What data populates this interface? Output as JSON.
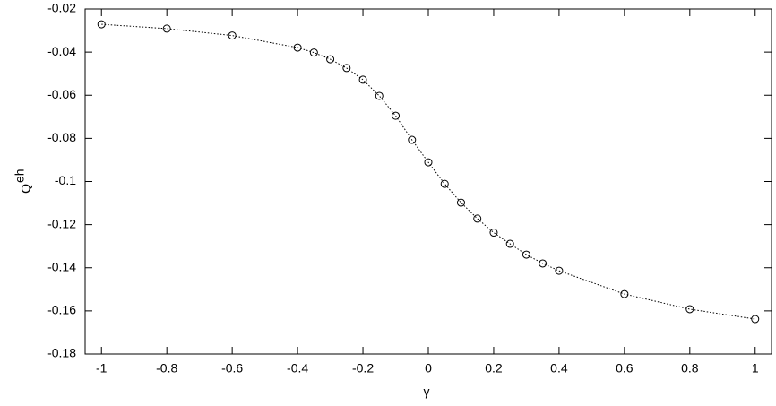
{
  "chart_data": {
    "type": "scatter",
    "xlabel": "γ",
    "ylabel": {
      "base": "Q",
      "superscript": "eh"
    },
    "x": [
      -1,
      -0.8,
      -0.6,
      -0.4,
      -0.35,
      -0.3,
      -0.25,
      -0.2,
      -0.15,
      -0.1,
      -0.05,
      0,
      0.05,
      0.1,
      0.15,
      0.2,
      0.25,
      0.3,
      0.35,
      0.4,
      0.6,
      0.8,
      1
    ],
    "values": [
      -0.0271,
      -0.0291,
      -0.0323,
      -0.0379,
      -0.0402,
      -0.0433,
      -0.0474,
      -0.0528,
      -0.0603,
      -0.0695,
      -0.0807,
      -0.0911,
      -0.1011,
      -0.1098,
      -0.1172,
      -0.1237,
      -0.1289,
      -0.1339,
      -0.138,
      -0.1414,
      -0.1522,
      -0.1592,
      -0.1638
    ],
    "color": "#000000",
    "line_style": "dotted",
    "xlim": [
      -1.05,
      1.05
    ],
    "ylim": [
      -0.18,
      -0.02
    ],
    "xticks": [
      -1,
      -0.8,
      -0.6,
      -0.4,
      -0.2,
      0,
      0.2,
      0.4,
      0.6,
      0.8,
      1
    ],
    "yticks": [
      -0.18,
      -0.16,
      -0.14,
      -0.12,
      -0.1,
      -0.08,
      -0.06,
      -0.04,
      -0.02
    ],
    "grid": false
  }
}
